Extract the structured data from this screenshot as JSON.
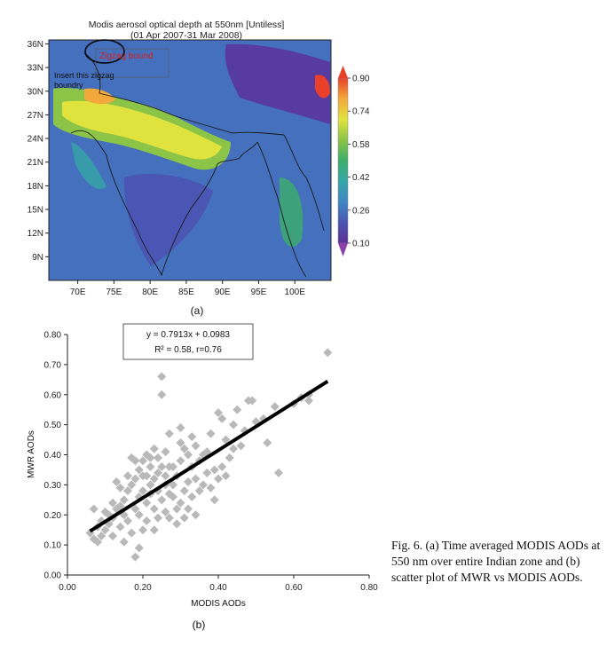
{
  "colors": {
    "scale": [
      "#5e2e98",
      "#4a55b4",
      "#3f86c4",
      "#35a6a8",
      "#3cae6a",
      "#8cc447",
      "#e0e33e",
      "#f2a83a",
      "#e8402a"
    ],
    "scatter_marker": "#b9b9b9",
    "fit_line": "#000000",
    "annotation_red": "#d42020"
  },
  "map": {
    "title_line1": "Modis aerosol optical depth at 550nm [Untiless]",
    "title_line2": "(01 Apr 2007-31 Mar 2008)",
    "lat_ticks": [
      "36N",
      "33N",
      "30N",
      "27N",
      "24N",
      "21N",
      "18N",
      "15N",
      "12N",
      "9N"
    ],
    "lon_ticks": [
      "70E",
      "75E",
      "80E",
      "85E",
      "90E",
      "95E",
      "100E"
    ],
    "colorbar_ticks": [
      "0.90",
      "0.74",
      "0.58",
      "0.42",
      "0.26",
      "0.10"
    ],
    "annotation_red": "Zigzag bound",
    "annotation_note_line1": "Insert this zigzag",
    "annotation_note_line2": "boundry",
    "panel_label": "(a)"
  },
  "scatter": {
    "panel_label": "(b)",
    "equation": "y = 0.7913x + 0.0983",
    "stats": "R² = 0.58, r=0.76"
  },
  "caption": "Fig. 6. (a) Time averaged MODIS AODs at 550 nm over entire Indian zone and (b) scatter plot of MWR vs MODIS AODs.",
  "chart_data": [
    {
      "type": "heatmap",
      "title": "Modis aerosol optical depth at 550nm [Untiless]",
      "subtitle": "(01 Apr 2007-31 Mar 2008)",
      "xlabel": "",
      "ylabel": "",
      "x_ticks": [
        "70E",
        "75E",
        "80E",
        "85E",
        "90E",
        "95E",
        "100E"
      ],
      "y_ticks": [
        "36N",
        "33N",
        "30N",
        "27N",
        "24N",
        "21N",
        "18N",
        "15N",
        "12N",
        "9N"
      ],
      "xlim": [
        66,
        105
      ],
      "ylim": [
        6,
        36.5
      ],
      "colorbar": {
        "min": 0.1,
        "max": 0.9,
        "ticks": [
          0.9,
          0.74,
          0.58,
          0.42,
          0.26,
          0.1
        ]
      },
      "grid": false
    },
    {
      "type": "scatter",
      "xlabel": "MODIS AODs",
      "ylabel": "MWR AODs",
      "xlim": [
        0,
        0.8
      ],
      "ylim": [
        0,
        0.8
      ],
      "x_ticks": [
        "0.00",
        "0.20",
        "0.40",
        "0.60",
        "0.80"
      ],
      "y_ticks": [
        "0.00",
        "0.10",
        "0.20",
        "0.30",
        "0.40",
        "0.50",
        "0.60",
        "0.70",
        "0.80"
      ],
      "grid": false,
      "fit": {
        "slope": 0.7913,
        "intercept": 0.0983,
        "x_range": [
          0.06,
          0.69
        ]
      },
      "points": [
        [
          0.06,
          0.14
        ],
        [
          0.07,
          0.12
        ],
        [
          0.08,
          0.11
        ],
        [
          0.07,
          0.22
        ],
        [
          0.08,
          0.16
        ],
        [
          0.09,
          0.18
        ],
        [
          0.1,
          0.15
        ],
        [
          0.11,
          0.17
        ],
        [
          0.12,
          0.13
        ],
        [
          0.12,
          0.19
        ],
        [
          0.13,
          0.22
        ],
        [
          0.14,
          0.23
        ],
        [
          0.14,
          0.16
        ],
        [
          0.15,
          0.2
        ],
        [
          0.15,
          0.25
        ],
        [
          0.16,
          0.18
        ],
        [
          0.16,
          0.28
        ],
        [
          0.17,
          0.3
        ],
        [
          0.17,
          0.39
        ],
        [
          0.18,
          0.32
        ],
        [
          0.18,
          0.22
        ],
        [
          0.18,
          0.06
        ],
        [
          0.19,
          0.09
        ],
        [
          0.19,
          0.35
        ],
        [
          0.19,
          0.26
        ],
        [
          0.2,
          0.28
        ],
        [
          0.2,
          0.33
        ],
        [
          0.2,
          0.38
        ],
        [
          0.21,
          0.24
        ],
        [
          0.21,
          0.18
        ],
        [
          0.21,
          0.4
        ],
        [
          0.22,
          0.27
        ],
        [
          0.22,
          0.36
        ],
        [
          0.22,
          0.3
        ],
        [
          0.23,
          0.22
        ],
        [
          0.23,
          0.32
        ],
        [
          0.23,
          0.15
        ],
        [
          0.24,
          0.28
        ],
        [
          0.24,
          0.34
        ],
        [
          0.24,
          0.39
        ],
        [
          0.25,
          0.66
        ],
        [
          0.25,
          0.6
        ],
        [
          0.25,
          0.25
        ],
        [
          0.26,
          0.3
        ],
        [
          0.26,
          0.21
        ],
        [
          0.26,
          0.33
        ],
        [
          0.27,
          0.36
        ],
        [
          0.27,
          0.19
        ],
        [
          0.27,
          0.47
        ],
        [
          0.28,
          0.26
        ],
        [
          0.28,
          0.3
        ],
        [
          0.29,
          0.17
        ],
        [
          0.29,
          0.33
        ],
        [
          0.3,
          0.38
        ],
        [
          0.3,
          0.44
        ],
        [
          0.3,
          0.24
        ],
        [
          0.31,
          0.28
        ],
        [
          0.31,
          0.42
        ],
        [
          0.32,
          0.22
        ],
        [
          0.32,
          0.31
        ],
        [
          0.33,
          0.36
        ],
        [
          0.33,
          0.26
        ],
        [
          0.34,
          0.32
        ],
        [
          0.34,
          0.2
        ],
        [
          0.35,
          0.38
        ],
        [
          0.36,
          0.3
        ],
        [
          0.36,
          0.4
        ],
        [
          0.37,
          0.34
        ],
        [
          0.38,
          0.29
        ],
        [
          0.39,
          0.25
        ],
        [
          0.4,
          0.54
        ],
        [
          0.4,
          0.32
        ],
        [
          0.41,
          0.36
        ],
        [
          0.42,
          0.45
        ],
        [
          0.42,
          0.33
        ],
        [
          0.43,
          0.39
        ],
        [
          0.44,
          0.5
        ],
        [
          0.44,
          0.42
        ],
        [
          0.45,
          0.55
        ],
        [
          0.46,
          0.43
        ],
        [
          0.47,
          0.48
        ],
        [
          0.48,
          0.58
        ],
        [
          0.49,
          0.58
        ],
        [
          0.5,
          0.51
        ],
        [
          0.52,
          0.52
        ],
        [
          0.53,
          0.44
        ],
        [
          0.55,
          0.56
        ],
        [
          0.56,
          0.34
        ],
        [
          0.6,
          0.57
        ],
        [
          0.62,
          0.59
        ],
        [
          0.64,
          0.6
        ],
        [
          0.64,
          0.58
        ],
        [
          0.69,
          0.74
        ],
        [
          0.1,
          0.21
        ],
        [
          0.13,
          0.31
        ],
        [
          0.15,
          0.11
        ],
        [
          0.17,
          0.14
        ],
        [
          0.19,
          0.2
        ],
        [
          0.2,
          0.15
        ],
        [
          0.22,
          0.39
        ],
        [
          0.24,
          0.19
        ],
        [
          0.26,
          0.41
        ],
        [
          0.28,
          0.36
        ],
        [
          0.29,
          0.22
        ],
        [
          0.31,
          0.19
        ],
        [
          0.33,
          0.46
        ],
        [
          0.35,
          0.28
        ],
        [
          0.37,
          0.41
        ],
        [
          0.39,
          0.35
        ],
        [
          0.16,
          0.33
        ],
        [
          0.18,
          0.38
        ],
        [
          0.21,
          0.33
        ],
        [
          0.23,
          0.42
        ],
        [
          0.25,
          0.36
        ],
        [
          0.27,
          0.27
        ],
        [
          0.14,
          0.29
        ],
        [
          0.12,
          0.24
        ],
        [
          0.11,
          0.2
        ],
        [
          0.09,
          0.13
        ],
        [
          0.3,
          0.49
        ],
        [
          0.32,
          0.4
        ],
        [
          0.34,
          0.43
        ],
        [
          0.38,
          0.47
        ],
        [
          0.41,
          0.52
        ]
      ]
    }
  ]
}
